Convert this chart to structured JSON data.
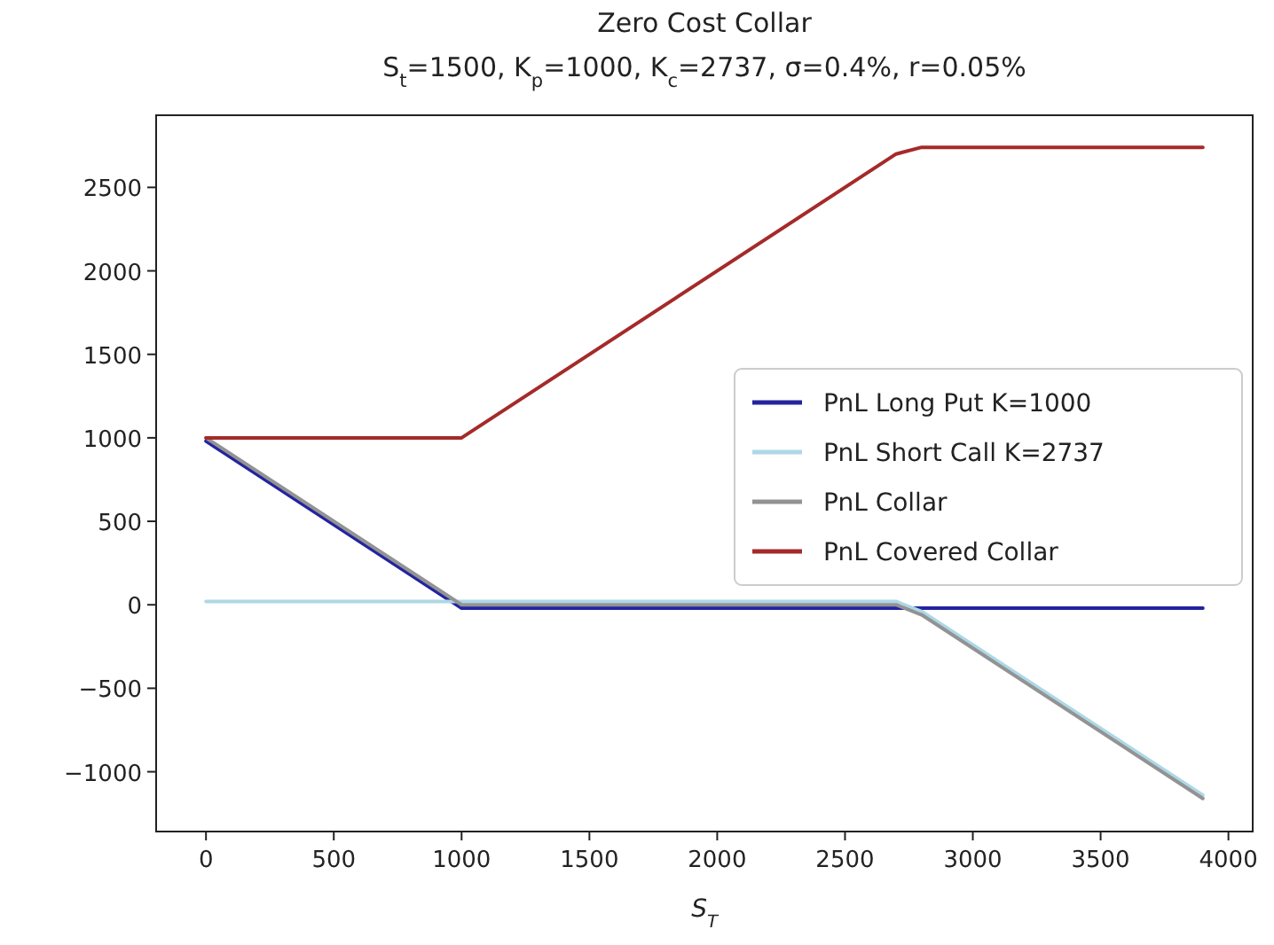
{
  "chart_data": {
    "type": "line",
    "title": "Zero Cost Collar",
    "subtitle": "S$_{t}$=1500, K$_{p}$=1000, K$_{c}$=2737, σ=0.4%, r=0.05%",
    "xlabel": "S$_{T}$",
    "xlim": [
      -195,
      4095
    ],
    "xticks": [
      0,
      500,
      1000,
      1500,
      2000,
      2500,
      3000,
      3500,
      4000
    ],
    "ylim": [
      -1358,
      2932
    ],
    "yticks": [
      -1000,
      -500,
      0,
      500,
      1000,
      1500,
      2000,
      2500
    ],
    "legend": "right",
    "grid": false,
    "marker": "none",
    "line_style": "solid",
    "series": [
      {
        "name": "PnL Long Put K=1000",
        "color": "#2323a0",
        "x": [
          0,
          1000,
          3900
        ],
        "values": [
          980,
          -20,
          -20
        ]
      },
      {
        "name": "PnL Short Call K=2737",
        "color": "#add8e6",
        "x": [
          0,
          2700,
          2800,
          3900
        ],
        "values": [
          20,
          20,
          -40,
          -1140
        ]
      },
      {
        "name": "PnL Collar",
        "color": "#939393",
        "x": [
          0,
          1000,
          2700,
          2800,
          3900
        ],
        "values": [
          1000,
          0,
          0,
          -60,
          -1160
        ]
      },
      {
        "name": "PnL Covered Collar",
        "color": "#a52a2a",
        "x": [
          0,
          1000,
          2700,
          2800,
          3900
        ],
        "values": [
          1000,
          1000,
          2700,
          2740,
          2740
        ]
      }
    ]
  }
}
